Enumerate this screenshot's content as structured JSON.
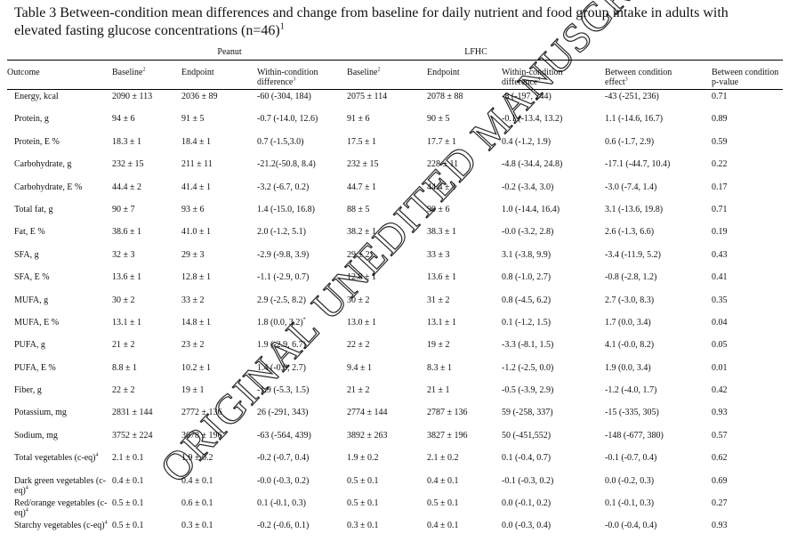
{
  "caption": {
    "text": "Table 3 Between-condition mean differences and change from baseline for daily nutrient and food group intake in adults with elevated fasting glucose concentrations (n=46)",
    "footnote_ref": "1"
  },
  "groups": {
    "peanut": "Peanut",
    "lfhc": "LFHC"
  },
  "headers": {
    "outcome": "Outcome",
    "baseline_peanut": "Baseline",
    "baseline_peanut_sup": "2",
    "endpoint_peanut": "Endpoint",
    "within_peanut_l1": "Within-condition",
    "within_peanut_l2": "difference",
    "within_peanut_sup": "3",
    "baseline_lfhc": "Baseline",
    "baseline_lfhc_sup": "2",
    "endpoint_lfhc": "Endpoint",
    "within_lfhc_l1": "Within-condition",
    "within_lfhc_l2": "difference",
    "within_lfhc_sup": "3",
    "between_effect_l1": "Between condition",
    "between_effect_l2": "effect",
    "between_effect_sup": "3",
    "between_p_l1": "Between condition",
    "between_p_l2": "p-value"
  },
  "rows": [
    {
      "outcome": "Energy, kcal",
      "pb": "2090 ± 113",
      "pe": "2036 ± 89",
      "pw": "-60 (-304, 184)",
      "lb": "2075 ± 114",
      "le": "2078 ± 88",
      "lw": "-8 (-197, 244)",
      "be": "-43 (-251, 236)",
      "p": "0.71"
    },
    {
      "outcome": "Protein, g",
      "pb": "94 ± 6",
      "pe": "91 ± 5",
      "pw": "-0.7 (-14.0, 12.6)",
      "lb": "91 ± 6",
      "le": "90 ± 5",
      "lw": "-0.1 (-13.4, 13.2)",
      "be": "1.1 (-14.6, 16.7)",
      "p": "0.89"
    },
    {
      "outcome": "Protein, E %",
      "pb": "18.3 ± 1",
      "pe": "18.4 ± 1",
      "pw": "0.7 (-1.5,3.0)",
      "lb": "17.5 ± 1",
      "le": "17.7 ± 1",
      "lw": "0.4 (-1.2, 1.9)",
      "be": "0.6 (-1.7, 2.9)",
      "p": "0.59"
    },
    {
      "outcome": "Carbohydrate, g",
      "pb": "232 ± 15",
      "pe": "211 ± 11",
      "pw": "-21.2(-50.8, 8.4)",
      "lb": "232 ± 15",
      "le": "228 ± 11",
      "lw": "-4.8 (-34.4, 24.8)",
      "be": "-17.1 (-44.7, 10.4)",
      "p": "0.22"
    },
    {
      "outcome": "Carbohydrate, E %",
      "pb": "44.4 ± 2",
      "pe": "41.4 ± 1",
      "pw": "-3.2 (-6.7, 0.2)",
      "lb": "44.7 ± 1",
      "le": "44.4 ± 1",
      "lw": "-0.2 (-3.4, 3.0)",
      "be": "-3.0 (-7.4, 1.4)",
      "p": "0.17"
    },
    {
      "outcome": "Total fat, g",
      "pb": "90 ± 7",
      "pe": "93 ± 6",
      "pw": "1.4 (-15.0, 16.8)",
      "lb": "88 ± 5",
      "le": "90 ± 6",
      "lw": "1.0 (-14.4, 16.4)",
      "be": "3.1 (-13.6, 19.8)",
      "p": "0.71"
    },
    {
      "outcome": "Fat, E %",
      "pb": "38.6 ± 1",
      "pe": "41.0 ± 1",
      "pw": "2.0 (-1.2, 5.1)",
      "lb": "38.2 ± 1",
      "le": "38.3 ± 1",
      "lw": "-0.0 (-3.2, 2.8)",
      "be": "2.6 (-1.3, 6.6)",
      "p": "0.19"
    },
    {
      "outcome": "SFA, g",
      "pb": "32 ± 3",
      "pe": "29 ± 3",
      "pw": "-2.9 (-9.8, 3.9)",
      "lb": "29 ± 2",
      "le": "33 ± 3",
      "lw": "3.1 (-3.8, 9.9)",
      "be": "-3.4 (-11.9, 5.2)",
      "p": "0.43"
    },
    {
      "outcome": "SFA, E %",
      "pb": "13.6 ± 1",
      "pe": "12.8 ± 1",
      "pw": "-1.1 (-2.9, 0.7)",
      "lb": "12.8 ± 1",
      "le": "13.6 ± 1",
      "lw": "0.8 (-1.0, 2.7)",
      "be": "-0.8 (-2.8, 1.2)",
      "p": "0.41"
    },
    {
      "outcome": "MUFA, g",
      "pb": "30 ± 2",
      "pe": "33 ± 2",
      "pw": "2.9 (-2.5, 8.2)",
      "lb": "30 ± 2",
      "le": "31 ± 2",
      "lw": "0.8 (-4.5, 6.2)",
      "be": "2.7 (-3.0, 8.3)",
      "p": "0.35"
    },
    {
      "outcome": "MUFA, E %",
      "pb": "13.1 ± 1",
      "pe": "14.8 ± 1",
      "pw": "1.8 (0.0, 3.2)",
      "pw_sup": "*",
      "lb": "13.0 ± 1",
      "le": "13.1 ± 1",
      "lw": "0.1 (-1.2, 1.5)",
      "be": "1.7 (0.0, 3.4)",
      "p": "0.04"
    },
    {
      "outcome": "PUFA, g",
      "pb": "21 ± 2",
      "pe": "23 ± 2",
      "pw": "1.9 (-2.9, 6.7)",
      "lb": "22 ± 2",
      "le": "19 ± 2",
      "lw": "-3.3 (-8.1, 1.5)",
      "be": "4.1 (-0.0, 8.2)",
      "p": "0.05"
    },
    {
      "outcome": "PUFA, E %",
      "pb": "8.8 ± 1",
      "pe": "10.2 ± 1",
      "pw": "1.4 (-0.0, 2.7)",
      "lb": "9.4 ± 1",
      "le": "8.3 ± 1",
      "lw": "-1.2 (-2.5, 0.0)",
      "be": "1.9 (0.0, 3.4)",
      "p": "0.01"
    },
    {
      "outcome": "Fiber, g",
      "pb": "22 ± 2",
      "pe": "19 ± 1",
      "pw": "-1.9 (-5.3, 1.5)",
      "lb": "21 ± 2",
      "le": "21 ± 1",
      "lw": "-0.5 (-3.9, 2.9)",
      "be": "-1.2 (-4.0, 1.7)",
      "p": "0.42"
    },
    {
      "outcome": "Potassium, mg",
      "pb": "2831 ± 144",
      "pe": "2772 ± 136",
      "pw": "26 (-291, 343)",
      "lb": "2774 ± 144",
      "le": "2787 ± 136",
      "lw": "59 (-258, 337)",
      "be": "-15 (-335, 305)",
      "p": "0.93"
    },
    {
      "outcome": "Sodium, mg",
      "pb": "3752 ± 224",
      "pe": "3678 ± 196",
      "pw": "-63 (-564, 439)",
      "lb": "3892 ± 263",
      "le": "3827 ± 196",
      "lw": "50 (-451,552)",
      "be": "-148 (-677, 380)",
      "p": "0.57"
    },
    {
      "outcome": "Total vegetables (c-eq)",
      "outcome_sup": "4",
      "pb": "2.1 ± 0.1",
      "pe": "1.9 ± 0.2",
      "pw": "-0.2 (-0.7, 0.4)",
      "lb": "1.9 ± 0.2",
      "le": "2.1 ± 0.2",
      "lw": "0.1 (-0.4, 0.7)",
      "be": "-0.1 (-0.7, 0.4)",
      "p": "0.62"
    },
    {
      "outcome": "Dark green vegetables (c-eq)",
      "outcome_sup": "4",
      "pb": "0.4 ± 0.1",
      "pe": "0.4 ± 0.1",
      "pw": "-0.0 (-0.3, 0.2)",
      "lb": "0.5 ± 0.1",
      "le": "0.4 ± 0.1",
      "lw": "-0.1 (-0.3, 0.2)",
      "be": "0.0 (-0.2, 0.3)",
      "p": "0.69"
    },
    {
      "outcome": "Red/orange vegetables (c-eq)",
      "outcome_sup": "4",
      "pb": "0.5 ± 0.1",
      "pe": "0.6 ± 0.1",
      "pw": "0.1 (-0.1, 0.3)",
      "lb": "0.5 ± 0.1",
      "le": "0.5 ± 0.1",
      "lw": "0.0 (-0.1, 0.2)",
      "be": "0.1 (-0.1, 0.3)",
      "p": "0.27"
    },
    {
      "outcome": "Starchy vegetables (c-eq)",
      "outcome_sup": "4",
      "pb": "0.5 ± 0.1",
      "pe": "0.3 ± 0.1",
      "pw": "-0.2 (-0.6, 0.1)",
      "lb": "0.3 ± 0.1",
      "le": "0.4 ± 0.1",
      "lw": "0.0 (-0.3, 0.4)",
      "be": "-0.0 (-0.4, 0.4)",
      "p": "0.93"
    }
  ],
  "watermark": {
    "text": "ORIGINAL UNEDITED MANUSCRIPT",
    "color": "#000000"
  }
}
